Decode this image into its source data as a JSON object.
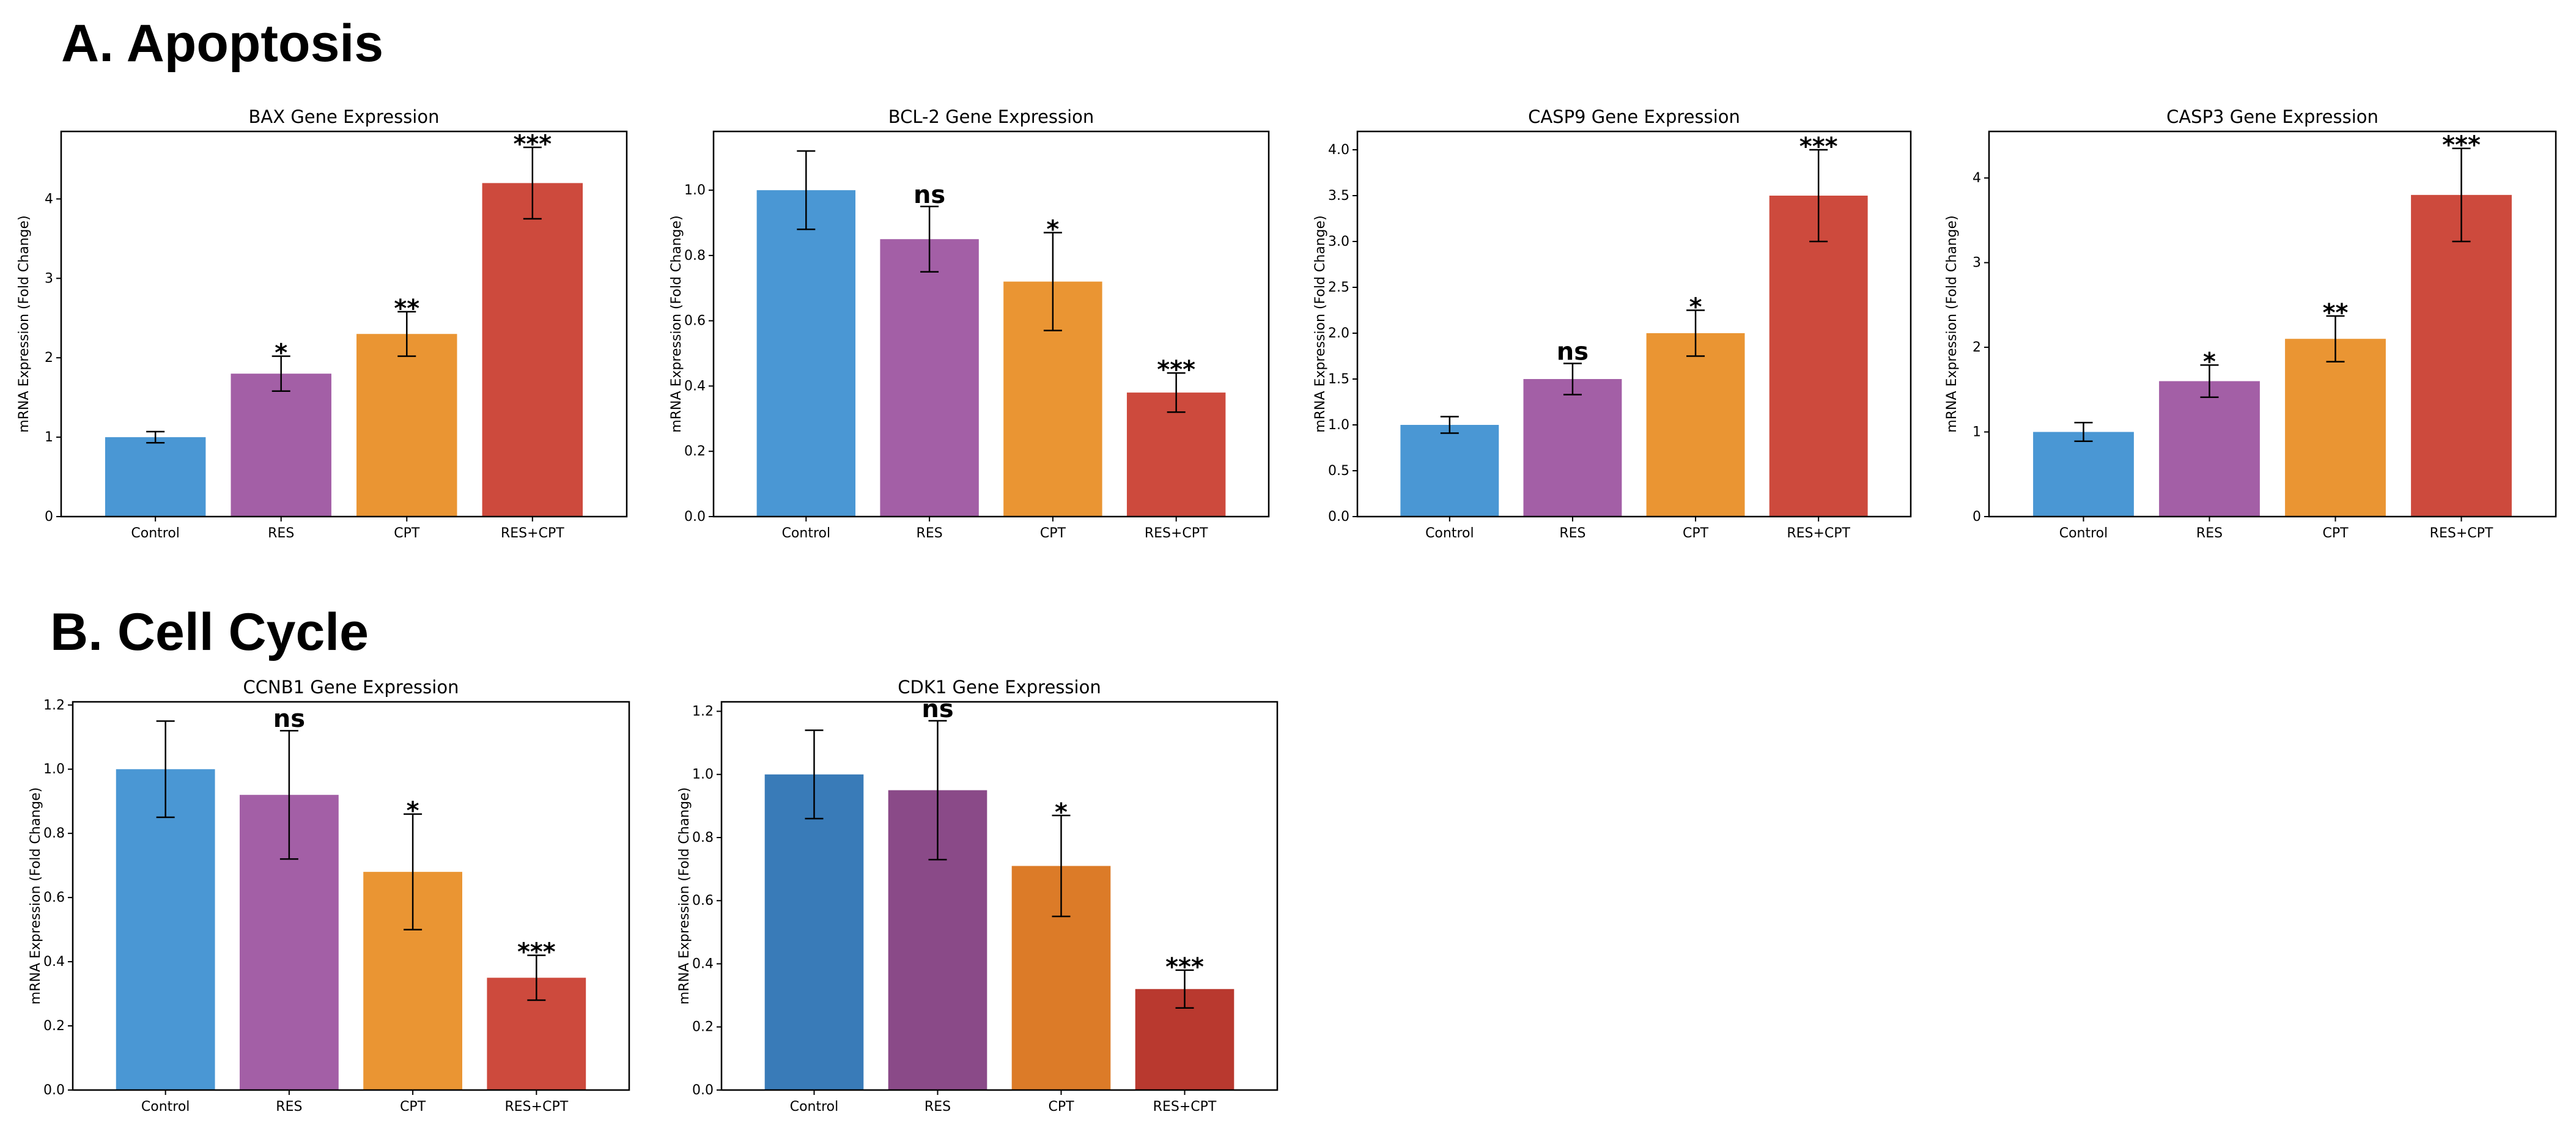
{
  "sections": {
    "apoptosis_title": "A. Apoptosis",
    "cell_cycle_title": "B. Cell Cycle"
  },
  "chart_data": [
    {
      "type": "bar",
      "title": "BAX Gene Expression",
      "xlabel": "",
      "ylabel": "mRNA Expression (Fold Change)",
      "categories": [
        "Control",
        "RES",
        "CPT",
        "RES+CPT"
      ],
      "values": [
        1.0,
        1.8,
        2.3,
        4.2
      ],
      "errors": [
        0.07,
        0.22,
        0.28,
        0.45
      ],
      "significance": [
        "",
        "*",
        "**",
        "***"
      ],
      "ylim": [
        0,
        4.85
      ],
      "yticks": [
        0,
        1,
        2,
        3,
        4
      ],
      "colors": [
        "#4a97d4",
        "#a35fa6",
        "#ea9533",
        "#cd4a3d"
      ]
    },
    {
      "type": "bar",
      "title": "BCL-2 Gene Expression",
      "xlabel": "",
      "ylabel": "mRNA Expression (Fold Change)",
      "categories": [
        "Control",
        "RES",
        "CPT",
        "RES+CPT"
      ],
      "values": [
        1.0,
        0.85,
        0.72,
        0.38
      ],
      "errors": [
        0.12,
        0.1,
        0.15,
        0.06
      ],
      "significance": [
        "",
        "ns",
        "*",
        "***"
      ],
      "ylim": [
        0,
        1.18
      ],
      "yticks": [
        0.0,
        0.2,
        0.4,
        0.6,
        0.8,
        1.0
      ],
      "colors": [
        "#4a97d4",
        "#a35fa6",
        "#ea9533",
        "#cd4a3d"
      ]
    },
    {
      "type": "bar",
      "title": "CASP9 Gene Expression",
      "xlabel": "",
      "ylabel": "mRNA Expression (Fold Change)",
      "categories": [
        "Control",
        "RES",
        "CPT",
        "RES+CPT"
      ],
      "values": [
        1.0,
        1.5,
        2.0,
        3.5
      ],
      "errors": [
        0.09,
        0.17,
        0.25,
        0.5
      ],
      "significance": [
        "",
        "ns",
        "*",
        "***"
      ],
      "ylim": [
        0,
        4.2
      ],
      "yticks": [
        0.0,
        0.5,
        1.0,
        1.5,
        2.0,
        2.5,
        3.0,
        3.5,
        4.0
      ],
      "colors": [
        "#4a97d4",
        "#a35fa6",
        "#ea9533",
        "#cd4a3d"
      ]
    },
    {
      "type": "bar",
      "title": "CASP3 Gene Expression",
      "xlabel": "",
      "ylabel": "mRNA Expression (Fold Change)",
      "categories": [
        "Control",
        "RES",
        "CPT",
        "RES+CPT"
      ],
      "values": [
        1.0,
        1.6,
        2.1,
        3.8
      ],
      "errors": [
        0.11,
        0.19,
        0.27,
        0.55
      ],
      "significance": [
        "",
        "*",
        "**",
        "***"
      ],
      "ylim": [
        0,
        4.55
      ],
      "yticks": [
        0,
        1,
        2,
        3,
        4
      ],
      "colors": [
        "#4a97d4",
        "#a35fa6",
        "#ea9533",
        "#cd4a3d"
      ]
    },
    {
      "type": "bar",
      "title": "CCNB1 Gene Expression",
      "xlabel": "",
      "ylabel": "mRNA Expression (Fold Change)",
      "categories": [
        "Control",
        "RES",
        "CPT",
        "RES+CPT"
      ],
      "values": [
        1.0,
        0.92,
        0.68,
        0.35
      ],
      "errors": [
        0.15,
        0.2,
        0.18,
        0.07
      ],
      "significance": [
        "",
        "ns",
        "*",
        "***"
      ],
      "ylim": [
        0,
        1.21
      ],
      "yticks": [
        0.0,
        0.2,
        0.4,
        0.6,
        0.8,
        1.0,
        1.2
      ],
      "colors": [
        "#4a97d4",
        "#a35fa6",
        "#ea9533",
        "#cd4a3d"
      ]
    },
    {
      "type": "bar",
      "title": "CDK1 Gene Expression",
      "xlabel": "",
      "ylabel": "mRNA Expression (Fold Change)",
      "categories": [
        "Control",
        "RES",
        "CPT",
        "RES+CPT"
      ],
      "values": [
        1.0,
        0.95,
        0.71,
        0.32
      ],
      "errors": [
        0.14,
        0.22,
        0.16,
        0.06
      ],
      "significance": [
        "",
        "ns",
        "*",
        "***"
      ],
      "ylim": [
        0,
        1.23
      ],
      "yticks": [
        0.0,
        0.2,
        0.4,
        0.6,
        0.8,
        1.0,
        1.2
      ],
      "colors": [
        "#397bb8",
        "#8a4a88",
        "#dc7b28",
        "#b9392f"
      ]
    }
  ]
}
